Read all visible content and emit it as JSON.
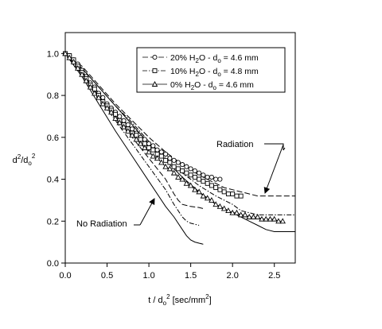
{
  "chart_data": {
    "type": "line",
    "xlim": [
      0,
      2.75
    ],
    "ylim": [
      0,
      1.1
    ],
    "x_ticks": [
      0.0,
      0.5,
      1.0,
      1.5,
      2.0,
      2.5
    ],
    "x_tick_labels": [
      "0.0",
      "0.5",
      "1.0",
      "1.5",
      "2.0",
      "2.5"
    ],
    "y_ticks": [
      0.0,
      0.2,
      0.4,
      0.6,
      0.8,
      1.0
    ],
    "y_tick_labels": [
      "0.0",
      "0.2",
      "0.4",
      "0.6",
      "0.8",
      "1.0"
    ],
    "xlabel": {
      "main": "t / d",
      "sub": "o",
      "sup": "2",
      "rest": " [sec/mm",
      "sup2": "2",
      "end": "]"
    },
    "ylabel": {
      "main": "d",
      "sup1": "2",
      "mid": "/d",
      "sub": "o",
      "sup2": "2"
    },
    "grid": false,
    "legend_placement": "top-right",
    "series": [
      {
        "name": {
          "pre": "20% H",
          "sub": "2",
          "mid": "O - d",
          "sub2": "o",
          "post": " = 4.6 mm"
        },
        "marker": "circle",
        "style": "dash",
        "x": [
          0.0,
          0.05,
          0.1,
          0.15,
          0.2,
          0.25,
          0.3,
          0.35,
          0.4,
          0.45,
          0.5,
          0.55,
          0.6,
          0.65,
          0.7,
          0.75,
          0.8,
          0.85,
          0.9,
          0.95,
          1.0,
          1.05,
          1.1,
          1.15,
          1.2,
          1.25,
          1.3,
          1.35,
          1.4,
          1.45,
          1.5,
          1.55,
          1.6,
          1.65,
          1.7,
          1.75,
          1.8,
          1.85
        ],
        "y": [
          1.0,
          0.99,
          0.97,
          0.95,
          0.92,
          0.89,
          0.86,
          0.84,
          0.81,
          0.79,
          0.76,
          0.74,
          0.72,
          0.7,
          0.68,
          0.66,
          0.64,
          0.62,
          0.6,
          0.59,
          0.57,
          0.56,
          0.54,
          0.53,
          0.52,
          0.5,
          0.49,
          0.48,
          0.47,
          0.46,
          0.45,
          0.44,
          0.43,
          0.42,
          0.41,
          0.41,
          0.4,
          0.4
        ]
      },
      {
        "name": {
          "pre": "10% H",
          "sub": "2",
          "mid": "O - d",
          "sub2": "o",
          "post": " = 4.8 mm"
        },
        "marker": "square",
        "style": "dashdot",
        "x": [
          0.0,
          0.05,
          0.1,
          0.15,
          0.2,
          0.25,
          0.3,
          0.35,
          0.4,
          0.45,
          0.5,
          0.55,
          0.6,
          0.65,
          0.7,
          0.75,
          0.8,
          0.85,
          0.9,
          0.95,
          1.0,
          1.05,
          1.1,
          1.15,
          1.2,
          1.25,
          1.3,
          1.35,
          1.4,
          1.45,
          1.5,
          1.55,
          1.6,
          1.65,
          1.7,
          1.75,
          1.8,
          1.85,
          1.9,
          1.95,
          2.0,
          2.05,
          2.1
        ],
        "y": [
          1.0,
          0.99,
          0.97,
          0.94,
          0.91,
          0.88,
          0.85,
          0.83,
          0.8,
          0.77,
          0.75,
          0.73,
          0.71,
          0.68,
          0.66,
          0.64,
          0.62,
          0.61,
          0.59,
          0.57,
          0.55,
          0.54,
          0.52,
          0.51,
          0.49,
          0.48,
          0.46,
          0.45,
          0.44,
          0.43,
          0.42,
          0.41,
          0.4,
          0.39,
          0.38,
          0.37,
          0.36,
          0.35,
          0.34,
          0.33,
          0.33,
          0.32,
          0.32
        ]
      },
      {
        "name": {
          "pre": "0% H",
          "sub": "2",
          "mid": "O - d",
          "sub2": "o",
          "post": " = 4.6 mm"
        },
        "marker": "triangle",
        "style": "solid",
        "x": [
          0.0,
          0.05,
          0.1,
          0.15,
          0.2,
          0.25,
          0.3,
          0.35,
          0.4,
          0.45,
          0.5,
          0.55,
          0.6,
          0.65,
          0.7,
          0.75,
          0.8,
          0.85,
          0.9,
          0.95,
          1.0,
          1.05,
          1.1,
          1.15,
          1.2,
          1.25,
          1.3,
          1.35,
          1.4,
          1.45,
          1.5,
          1.55,
          1.6,
          1.65,
          1.7,
          1.75,
          1.8,
          1.85,
          1.9,
          1.95,
          2.0,
          2.05,
          2.1,
          2.15,
          2.2,
          2.25,
          2.3,
          2.35,
          2.4,
          2.45,
          2.5,
          2.55,
          2.6
        ],
        "y": [
          1.0,
          0.98,
          0.96,
          0.93,
          0.9,
          0.87,
          0.84,
          0.81,
          0.79,
          0.76,
          0.74,
          0.72,
          0.69,
          0.67,
          0.65,
          0.63,
          0.61,
          0.59,
          0.57,
          0.55,
          0.53,
          0.51,
          0.5,
          0.48,
          0.46,
          0.45,
          0.43,
          0.41,
          0.4,
          0.38,
          0.37,
          0.35,
          0.34,
          0.32,
          0.31,
          0.3,
          0.28,
          0.27,
          0.26,
          0.25,
          0.24,
          0.24,
          0.23,
          0.23,
          0.22,
          0.22,
          0.22,
          0.21,
          0.21,
          0.21,
          0.21,
          0.2,
          0.2
        ]
      }
    ],
    "extra_lines": [
      {
        "style": "solid",
        "x": [
          0.0,
          0.2,
          0.4,
          0.6,
          0.8,
          1.0,
          1.2,
          1.3,
          1.4,
          1.45,
          1.5,
          1.55,
          1.6,
          1.65
        ],
        "y": [
          1.0,
          0.89,
          0.76,
          0.63,
          0.51,
          0.39,
          0.27,
          0.22,
          0.16,
          0.13,
          0.11,
          0.1,
          0.095,
          0.09
        ]
      },
      {
        "style": "dashdot",
        "x": [
          0.0,
          0.2,
          0.4,
          0.6,
          0.8,
          1.0,
          1.2,
          1.3,
          1.35,
          1.4,
          1.45,
          1.5,
          1.55,
          1.6
        ],
        "y": [
          1.0,
          0.9,
          0.79,
          0.68,
          0.57,
          0.46,
          0.35,
          0.28,
          0.25,
          0.22,
          0.2,
          0.19,
          0.185,
          0.18
        ]
      },
      {
        "style": "dash",
        "x": [
          0.0,
          0.2,
          0.4,
          0.6,
          0.8,
          1.0,
          1.2,
          1.3,
          1.35,
          1.4,
          1.5,
          1.6,
          1.65
        ],
        "y": [
          1.0,
          0.91,
          0.8,
          0.7,
          0.6,
          0.5,
          0.4,
          0.33,
          0.3,
          0.28,
          0.27,
          0.265,
          0.26
        ]
      },
      {
        "style": "solid",
        "x": [
          0.0,
          0.2,
          0.4,
          0.6,
          0.8,
          1.0,
          1.2,
          1.4,
          1.6,
          1.8,
          2.0,
          2.1,
          2.2,
          2.3,
          2.4,
          2.5,
          2.6,
          2.75
        ],
        "y": [
          1.0,
          0.93,
          0.84,
          0.75,
          0.66,
          0.57,
          0.49,
          0.41,
          0.34,
          0.28,
          0.24,
          0.22,
          0.2,
          0.18,
          0.16,
          0.15,
          0.15,
          0.15
        ]
      },
      {
        "style": "dashdot",
        "x": [
          0.0,
          0.2,
          0.4,
          0.6,
          0.8,
          1.0,
          1.2,
          1.4,
          1.6,
          1.8,
          2.0,
          2.1,
          2.2,
          2.3,
          2.4,
          2.5,
          2.6,
          2.75
        ],
        "y": [
          1.0,
          0.93,
          0.84,
          0.75,
          0.67,
          0.58,
          0.5,
          0.43,
          0.37,
          0.32,
          0.28,
          0.25,
          0.24,
          0.23,
          0.23,
          0.23,
          0.23,
          0.23
        ]
      },
      {
        "style": "dash",
        "x": [
          0.0,
          0.2,
          0.4,
          0.6,
          0.8,
          1.0,
          1.2,
          1.4,
          1.6,
          1.8,
          1.9,
          2.0,
          2.1,
          2.2,
          2.3,
          2.4,
          2.5,
          2.6,
          2.75
        ],
        "y": [
          1.0,
          0.94,
          0.85,
          0.76,
          0.68,
          0.6,
          0.53,
          0.47,
          0.42,
          0.38,
          0.36,
          0.35,
          0.34,
          0.33,
          0.32,
          0.32,
          0.32,
          0.32,
          0.32
        ]
      }
    ],
    "annotations": [
      {
        "text": "Radiation"
      },
      {
        "text": "No Radiation"
      }
    ]
  }
}
